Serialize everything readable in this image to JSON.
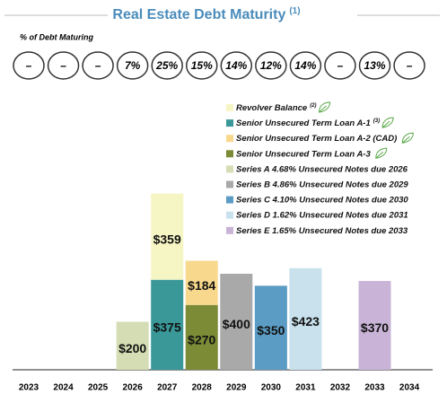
{
  "chart_data": {
    "type": "stacked_bar",
    "title": "Real Estate Debt Maturity",
    "title_note": "(1)",
    "subtitle": "% of Debt Maturing",
    "pct_labels": [
      "–",
      "–",
      "–",
      "7%",
      "25%",
      "15%",
      "14%",
      "12%",
      "14%",
      "–",
      "13%",
      "–"
    ],
    "categories": [
      "2023",
      "2024",
      "2025",
      "2026",
      "2027",
      "2028",
      "2029",
      "2030",
      "2031",
      "2032",
      "2033",
      "2034"
    ],
    "ylim": [
      0,
      800
    ],
    "series": [
      {
        "name": "Series A 4.68% Unsecured Notes due 2026",
        "color": "#d4ddb3",
        "values": [
          null,
          null,
          null,
          200,
          null,
          null,
          null,
          null,
          null,
          null,
          null,
          null
        ],
        "value_labels": [
          null,
          null,
          null,
          "$200",
          null,
          null,
          null,
          null,
          null,
          null,
          null,
          null
        ]
      },
      {
        "name": "Senior Unsecured Term Loan A-1",
        "footnote": "(3)",
        "leaf": true,
        "color": "#3a9898",
        "values": [
          null,
          null,
          null,
          null,
          375,
          null,
          null,
          null,
          null,
          null,
          null,
          null
        ],
        "value_labels": [
          null,
          null,
          null,
          null,
          "$375",
          null,
          null,
          null,
          null,
          null,
          null,
          null
        ]
      },
      {
        "name": "Revolver Balance",
        "footnote": "(2)",
        "leaf": true,
        "color": "#f6f5c4",
        "values": [
          null,
          null,
          null,
          null,
          359,
          null,
          null,
          null,
          null,
          null,
          null,
          null
        ],
        "value_labels": [
          null,
          null,
          null,
          null,
          "$359",
          null,
          null,
          null,
          null,
          null,
          null,
          null
        ]
      },
      {
        "name": "Senior Unsecured Term Loan A-3",
        "leaf": true,
        "color": "#7b8b36",
        "values": [
          null,
          null,
          null,
          null,
          null,
          270,
          null,
          null,
          null,
          null,
          null,
          null
        ],
        "value_labels": [
          null,
          null,
          null,
          null,
          null,
          "$270",
          null,
          null,
          null,
          null,
          null,
          null
        ]
      },
      {
        "name": "Senior Unsecured Term Loan A-2 (CAD)",
        "leaf": true,
        "color": "#f8d88c",
        "values": [
          null,
          null,
          null,
          null,
          null,
          184,
          null,
          null,
          null,
          null,
          null,
          null
        ],
        "value_labels": [
          null,
          null,
          null,
          null,
          null,
          "$184",
          null,
          null,
          null,
          null,
          null,
          null
        ]
      },
      {
        "name": "Series B 4.86% Unsecured Notes due 2029",
        "color": "#a9a9a9",
        "values": [
          null,
          null,
          null,
          null,
          null,
          null,
          400,
          null,
          null,
          null,
          null,
          null
        ],
        "value_labels": [
          null,
          null,
          null,
          null,
          null,
          null,
          "$400",
          null,
          null,
          null,
          null,
          null
        ]
      },
      {
        "name": "Series C 4.10% Unsecured Notes due 2030",
        "color": "#5b9cc4",
        "values": [
          null,
          null,
          null,
          null,
          null,
          null,
          null,
          350,
          null,
          null,
          null,
          null
        ],
        "value_labels": [
          null,
          null,
          null,
          null,
          null,
          null,
          null,
          "$350",
          null,
          null,
          null,
          null
        ]
      },
      {
        "name": "Series D 1.62% Unsecured Notes due 2031",
        "color": "#c9e1ed",
        "values": [
          null,
          null,
          null,
          null,
          null,
          null,
          null,
          null,
          423,
          null,
          null,
          null
        ],
        "value_labels": [
          null,
          null,
          null,
          null,
          null,
          null,
          null,
          null,
          "$423",
          null,
          null,
          null
        ]
      },
      {
        "name": "Series E 1.65% Unsecured Notes due 2033",
        "color": "#c9b4d7",
        "values": [
          null,
          null,
          null,
          null,
          null,
          null,
          null,
          null,
          null,
          null,
          370,
          null
        ],
        "value_labels": [
          null,
          null,
          null,
          null,
          null,
          null,
          null,
          null,
          null,
          null,
          "$370",
          null
        ]
      }
    ],
    "legend_order": [
      2,
      1,
      4,
      3,
      0,
      5,
      6,
      7,
      8
    ]
  }
}
